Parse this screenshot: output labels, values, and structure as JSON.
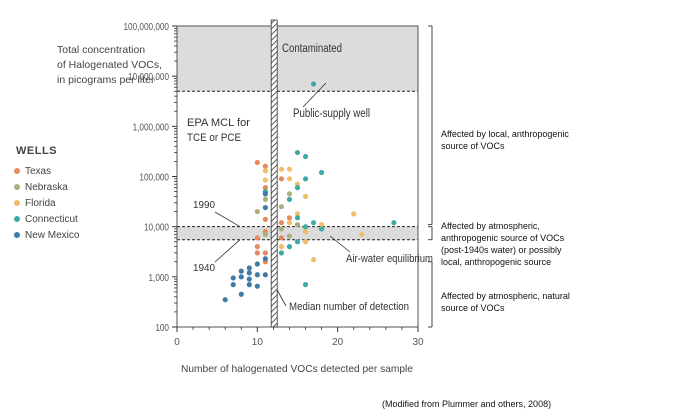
{
  "chart_data": {
    "type": "scatter",
    "title": "",
    "ylabel_lines": [
      "Total concentration",
      "of Halogenated VOCs,",
      "in picograms per liter"
    ],
    "xlabel": "Number of halogenated VOCs detected per sample",
    "xlim": [
      0,
      30
    ],
    "ylim": [
      100,
      100000000
    ],
    "yscale": "log",
    "x_ticks": [
      "0",
      "10",
      "20",
      "30"
    ],
    "y_ticks": [
      "100",
      "1,000",
      "10,000",
      "100,000",
      "1,000,000",
      "10,000,000",
      "100,000,000"
    ],
    "legend_title": "WELLS",
    "series": [
      {
        "name": "Texas",
        "color": "#e8895c",
        "points": [
          [
            10,
            190000
          ],
          [
            11,
            160000
          ],
          [
            12,
            45000
          ],
          [
            12,
            30000
          ],
          [
            11,
            14000
          ],
          [
            10,
            6000
          ],
          [
            10,
            4000
          ],
          [
            11,
            3000
          ],
          [
            12,
            2500
          ],
          [
            11,
            8000
          ],
          [
            12,
            8000
          ],
          [
            13,
            12000
          ],
          [
            10,
            3000
          ],
          [
            11,
            2000
          ],
          [
            12,
            5000
          ],
          [
            13,
            6000
          ],
          [
            14,
            15000
          ],
          [
            12,
            12000
          ],
          [
            11,
            60000
          ],
          [
            13,
            90000
          ]
        ]
      },
      {
        "name": "Nebraska",
        "color": "#a9b07e",
        "points": [
          [
            10,
            20000
          ],
          [
            11,
            35000
          ],
          [
            12,
            55000
          ],
          [
            13,
            25000
          ],
          [
            14,
            45000
          ],
          [
            12,
            16000
          ],
          [
            11,
            7000
          ],
          [
            13,
            9000
          ],
          [
            14,
            6500
          ],
          [
            15,
            11000
          ]
        ]
      },
      {
        "name": "Florida",
        "color": "#f2bd68",
        "points": [
          [
            11,
            130000
          ],
          [
            12,
            110000
          ],
          [
            13,
            140000
          ],
          [
            14,
            90000
          ],
          [
            15,
            70000
          ],
          [
            16,
            40000
          ],
          [
            15,
            18000
          ],
          [
            14,
            12000
          ],
          [
            16,
            8000
          ],
          [
            17,
            2200
          ],
          [
            16,
            5000
          ],
          [
            18,
            11000
          ],
          [
            22,
            18000
          ],
          [
            23,
            7000
          ],
          [
            13,
            4000
          ],
          [
            12,
            9000
          ],
          [
            11,
            85000
          ],
          [
            14,
            140000
          ]
        ]
      },
      {
        "name": "Connecticut",
        "color": "#3fa9a8",
        "points": [
          [
            17,
            7000000
          ],
          [
            15,
            300000
          ],
          [
            16,
            250000
          ],
          [
            18,
            120000
          ],
          [
            16,
            90000
          ],
          [
            15,
            60000
          ],
          [
            14,
            35000
          ],
          [
            15,
            15000
          ],
          [
            16,
            10000
          ],
          [
            17,
            12000
          ],
          [
            18,
            9000
          ],
          [
            27,
            12000
          ],
          [
            14,
            4000
          ],
          [
            13,
            3000
          ],
          [
            12,
            20000
          ],
          [
            11,
            50000
          ],
          [
            15,
            5000
          ],
          [
            16,
            700
          ]
        ]
      },
      {
        "name": "New Mexico",
        "color": "#3d7ca8",
        "points": [
          [
            6,
            350
          ],
          [
            7,
            700
          ],
          [
            7,
            950
          ],
          [
            8,
            450
          ],
          [
            8,
            1300
          ],
          [
            9,
            900
          ],
          [
            9,
            1500
          ],
          [
            9,
            1200
          ],
          [
            10,
            1100
          ],
          [
            10,
            1800
          ],
          [
            10,
            650
          ],
          [
            11,
            2300
          ],
          [
            11,
            1100
          ],
          [
            12,
            1400
          ],
          [
            12,
            800
          ],
          [
            11,
            24000
          ],
          [
            11,
            45000
          ],
          [
            12,
            70000
          ],
          [
            12,
            3500
          ],
          [
            8,
            1000
          ],
          [
            9,
            700
          ]
        ]
      }
    ],
    "annotations": {
      "contaminated": "Contaminated",
      "public_supply": "Public-supply well",
      "epa_mcl_1": "EPA MCL for",
      "epa_mcl_2": "TCE or PCE",
      "y1990": "1990",
      "y1940": "1940",
      "air_water": "Air-water equilibrium",
      "median": "Median number of detection"
    },
    "right_labels": {
      "top": [
        "Affected by local, anthropogenic",
        "source of VOCs"
      ],
      "middle": [
        "Affected by atmospheric,",
        "anthropogenic source of VOCs",
        "(post-1940s water) or possibly",
        "local, anthropogenic source"
      ],
      "bottom": [
        "Affected by atmospheric, natural",
        "source of VOCs"
      ]
    },
    "source": "(Modified from Plummer  and others, 2008)"
  }
}
